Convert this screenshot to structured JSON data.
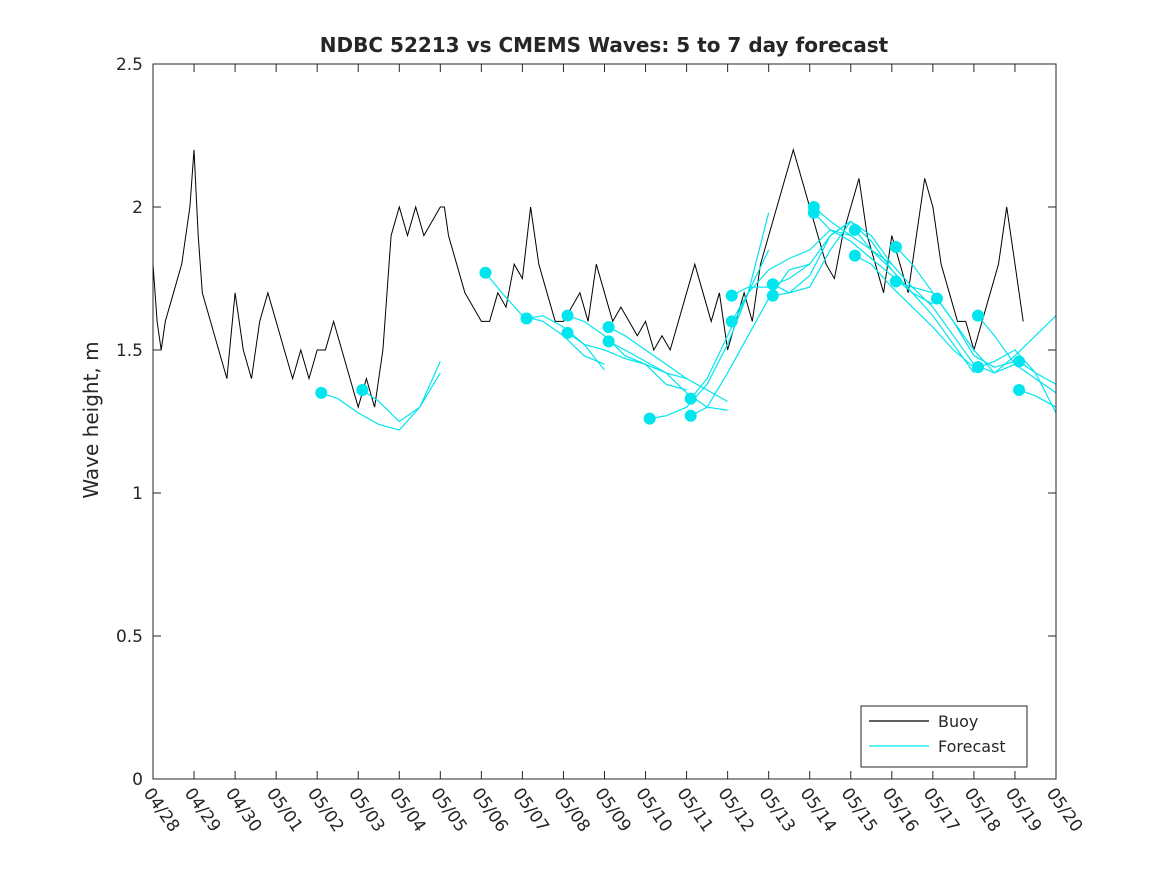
{
  "chart_data": {
    "type": "line",
    "title": "NDBC 52213 vs CMEMS Waves: 5 to 7 day forecast",
    "xlabel": "",
    "ylabel": "Wave height, m",
    "ylim": [
      0,
      2.5
    ],
    "yticks": [
      "0",
      "0.5",
      "1",
      "1.5",
      "2",
      "2.5"
    ],
    "xlim": [
      "04/28",
      "05/20"
    ],
    "xticks": [
      "04/28",
      "04/29",
      "04/30",
      "05/01",
      "05/02",
      "05/03",
      "05/04",
      "05/05",
      "05/06",
      "05/07",
      "05/08",
      "05/09",
      "05/10",
      "05/11",
      "05/12",
      "05/13",
      "05/14",
      "05/15",
      "05/16",
      "05/17",
      "05/18",
      "05/19",
      "05/20"
    ],
    "grid": false,
    "legend": {
      "placement": "bottom-right",
      "entries": [
        "Buoy",
        "Forecast"
      ]
    },
    "colors": {
      "buoy": "#000000",
      "forecast": "#00e5ee"
    },
    "series": [
      {
        "name": "Buoy",
        "x_days_from_0428": [
          0.0,
          0.1,
          0.2,
          0.3,
          0.5,
          0.7,
          0.9,
          1.0,
          1.1,
          1.2,
          1.4,
          1.6,
          1.8,
          2.0,
          2.2,
          2.4,
          2.6,
          2.8,
          3.0,
          3.2,
          3.4,
          3.6,
          3.8,
          4.0,
          4.2,
          4.4,
          4.6,
          4.8,
          5.0,
          5.2,
          5.4,
          5.6,
          5.8,
          6.0,
          6.2,
          6.4,
          6.6,
          6.8,
          7.0,
          7.1,
          7.2,
          7.4,
          7.6,
          7.8,
          8.0,
          8.2,
          8.4,
          8.6,
          8.8,
          9.0,
          9.2,
          9.4,
          9.6,
          9.8,
          10.0,
          10.2,
          10.4,
          10.6,
          10.8,
          11.0,
          11.2,
          11.4,
          11.6,
          11.8,
          12.0,
          12.2,
          12.4,
          12.6,
          12.8,
          13.0,
          13.2,
          13.4,
          13.6,
          13.8,
          14.0,
          14.2,
          14.4,
          14.6,
          14.8,
          15.0,
          15.2,
          15.4,
          15.6,
          15.8,
          16.0,
          16.2,
          16.4,
          16.6,
          16.8,
          17.0,
          17.2,
          17.4,
          17.6,
          17.8,
          18.0,
          18.2,
          18.4,
          18.6,
          18.8,
          19.0,
          19.2,
          19.4,
          19.6,
          19.8,
          20.0,
          20.2,
          20.4,
          20.6,
          20.8,
          21.0,
          21.2
        ],
        "values": [
          1.8,
          1.6,
          1.5,
          1.6,
          1.7,
          1.8,
          2.0,
          2.2,
          1.9,
          1.7,
          1.6,
          1.5,
          1.4,
          1.7,
          1.5,
          1.4,
          1.6,
          1.7,
          1.6,
          1.5,
          1.4,
          1.5,
          1.4,
          1.5,
          1.5,
          1.6,
          1.5,
          1.4,
          1.3,
          1.4,
          1.3,
          1.5,
          1.9,
          2.0,
          1.9,
          2.0,
          1.9,
          1.95,
          2.0,
          2.0,
          1.9,
          1.8,
          1.7,
          1.65,
          1.6,
          1.6,
          1.7,
          1.65,
          1.8,
          1.75,
          2.0,
          1.8,
          1.7,
          1.6,
          1.6,
          1.65,
          1.7,
          1.6,
          1.8,
          1.7,
          1.6,
          1.65,
          1.6,
          1.55,
          1.6,
          1.5,
          1.55,
          1.5,
          1.6,
          1.7,
          1.8,
          1.7,
          1.6,
          1.7,
          1.5,
          1.6,
          1.7,
          1.6,
          1.8,
          1.9,
          2.0,
          2.1,
          2.2,
          2.1,
          2.0,
          1.9,
          1.8,
          1.75,
          1.9,
          2.0,
          2.1,
          1.9,
          1.8,
          1.7,
          1.9,
          1.8,
          1.7,
          1.9,
          2.1,
          2.0,
          1.8,
          1.7,
          1.6,
          1.6,
          1.5,
          1.6,
          1.7,
          1.8,
          2.0,
          1.8,
          1.6
        ]
      },
      {
        "name": "Forecast",
        "tracks": [
          {
            "x": [
              4.1,
              4.5,
              5.0,
              5.5,
              6.0,
              6.5,
              7.0
            ],
            "y": [
              1.35,
              1.33,
              1.28,
              1.24,
              1.22,
              1.3,
              1.46
            ]
          },
          {
            "x": [
              5.1,
              5.5,
              6.0,
              6.5,
              7.0
            ],
            "y": [
              1.36,
              1.32,
              1.25,
              1.3,
              1.42
            ]
          },
          {
            "x": [
              8.1,
              8.5,
              9.0,
              9.5,
              10.0,
              10.5,
              11.0
            ],
            "y": [
              1.77,
              1.7,
              1.62,
              1.6,
              1.55,
              1.48,
              1.45
            ]
          },
          {
            "x": [
              9.1,
              9.5,
              10.0,
              10.5,
              11.0
            ],
            "y": [
              1.61,
              1.62,
              1.58,
              1.52,
              1.43
            ]
          },
          {
            "x": [
              10.1,
              10.5,
              11.0,
              11.5,
              12.0,
              12.5,
              13.0
            ],
            "y": [
              1.62,
              1.6,
              1.55,
              1.48,
              1.45,
              1.42,
              1.4
            ]
          },
          {
            "x": [
              10.1,
              10.5,
              11.0,
              11.5,
              12.0,
              12.5,
              13.0
            ],
            "y": [
              1.56,
              1.52,
              1.5,
              1.47,
              1.45,
              1.38,
              1.36
            ]
          },
          {
            "x": [
              11.1,
              11.5,
              12.0,
              12.5,
              13.0,
              13.5,
              14.0
            ],
            "y": [
              1.58,
              1.55,
              1.5,
              1.45,
              1.4,
              1.36,
              1.32
            ]
          },
          {
            "x": [
              11.1,
              11.5,
              12.0,
              12.5,
              13.0,
              13.5,
              14.0
            ],
            "y": [
              1.53,
              1.5,
              1.46,
              1.42,
              1.35,
              1.3,
              1.29
            ]
          },
          {
            "x": [
              12.1,
              12.5,
              13.0,
              13.5,
              14.0,
              14.5,
              15.0
            ],
            "y": [
              1.26,
              1.27,
              1.3,
              1.38,
              1.52,
              1.7,
              1.98
            ]
          },
          {
            "x": [
              13.1,
              13.5,
              14.0,
              14.5,
              15.0
            ],
            "y": [
              1.33,
              1.4,
              1.55,
              1.7,
              1.85
            ]
          },
          {
            "x": [
              13.1,
              13.5,
              14.0,
              14.5,
              15.0,
              15.5,
              16.0
            ],
            "y": [
              1.27,
              1.3,
              1.42,
              1.55,
              1.68,
              1.78,
              1.8
            ]
          },
          {
            "x": [
              14.1,
              14.5,
              15.0,
              15.5,
              16.0,
              16.5,
              17.0
            ],
            "y": [
              1.69,
              1.72,
              1.72,
              1.75,
              1.8,
              1.9,
              1.95
            ]
          },
          {
            "x": [
              14.1,
              14.5,
              15.0,
              15.5,
              16.0,
              16.5,
              17.0
            ],
            "y": [
              1.6,
              1.7,
              1.78,
              1.82,
              1.85,
              1.92,
              1.9
            ]
          },
          {
            "x": [
              15.1,
              15.5,
              16.0,
              16.5,
              17.0,
              17.5,
              18.0
            ],
            "y": [
              1.73,
              1.7,
              1.72,
              1.85,
              1.95,
              1.9,
              1.8
            ]
          },
          {
            "x": [
              15.1,
              15.5,
              16.0,
              16.5,
              17.0,
              17.5,
              18.0
            ],
            "y": [
              1.69,
              1.7,
              1.76,
              1.9,
              1.95,
              1.88,
              1.78
            ]
          },
          {
            "x": [
              16.1,
              16.5,
              17.0,
              17.5,
              18.0,
              18.5,
              19.0
            ],
            "y": [
              2.0,
              1.95,
              1.9,
              1.85,
              1.8,
              1.72,
              1.7
            ]
          },
          {
            "x": [
              16.1,
              16.5,
              17.0,
              17.5,
              18.0,
              18.5,
              19.0
            ],
            "y": [
              1.98,
              1.92,
              1.88,
              1.82,
              1.76,
              1.7,
              1.66
            ]
          },
          {
            "x": [
              17.1,
              17.5,
              18.0,
              18.5,
              19.0,
              19.5,
              20.0
            ],
            "y": [
              1.92,
              1.85,
              1.78,
              1.7,
              1.62,
              1.52,
              1.42
            ]
          },
          {
            "x": [
              17.1,
              17.5,
              18.0,
              18.5,
              19.0,
              19.5,
              20.0
            ],
            "y": [
              1.83,
              1.8,
              1.72,
              1.65,
              1.58,
              1.5,
              1.44
            ]
          },
          {
            "x": [
              18.1,
              18.5,
              19.0,
              19.5,
              20.0,
              20.5,
              21.0
            ],
            "y": [
              1.86,
              1.8,
              1.7,
              1.6,
              1.48,
              1.44,
              1.46
            ]
          },
          {
            "x": [
              18.1,
              18.5,
              19.0,
              19.5,
              20.0,
              20.5,
              21.0
            ],
            "y": [
              1.74,
              1.72,
              1.65,
              1.55,
              1.45,
              1.42,
              1.45
            ]
          },
          {
            "x": [
              19.1,
              19.5,
              20.0,
              20.5,
              21.0,
              21.5,
              22.0
            ],
            "y": [
              1.68,
              1.6,
              1.5,
              1.42,
              1.48,
              1.55,
              1.62
            ]
          },
          {
            "x": [
              20.1,
              20.5,
              21.0,
              21.5,
              22.0
            ],
            "y": [
              1.62,
              1.55,
              1.45,
              1.4,
              1.35
            ]
          },
          {
            "x": [
              20.1,
              20.5,
              21.0,
              21.5,
              22.0
            ],
            "y": [
              1.44,
              1.46,
              1.5,
              1.42,
              1.28
            ]
          },
          {
            "x": [
              21.1,
              21.5,
              22.0
            ],
            "y": [
              1.46,
              1.42,
              1.38
            ]
          },
          {
            "x": [
              21.1,
              21.5,
              22.0
            ],
            "y": [
              1.36,
              1.34,
              1.3
            ]
          }
        ],
        "points": [
          [
            4.1,
            1.35
          ],
          [
            5.1,
            1.36
          ],
          [
            8.1,
            1.77
          ],
          [
            9.1,
            1.61
          ],
          [
            10.1,
            1.62
          ],
          [
            10.1,
            1.56
          ],
          [
            11.1,
            1.58
          ],
          [
            11.1,
            1.53
          ],
          [
            12.1,
            1.26
          ],
          [
            13.1,
            1.33
          ],
          [
            13.1,
            1.27
          ],
          [
            14.1,
            1.69
          ],
          [
            14.1,
            1.6
          ],
          [
            15.1,
            1.73
          ],
          [
            15.1,
            1.69
          ],
          [
            16.1,
            2.0
          ],
          [
            16.1,
            1.98
          ],
          [
            17.1,
            1.92
          ],
          [
            17.1,
            1.83
          ],
          [
            18.1,
            1.86
          ],
          [
            18.1,
            1.74
          ],
          [
            19.1,
            1.68
          ],
          [
            20.1,
            1.62
          ],
          [
            20.1,
            1.44
          ],
          [
            21.1,
            1.46
          ],
          [
            21.1,
            1.36
          ]
        ]
      }
    ]
  }
}
